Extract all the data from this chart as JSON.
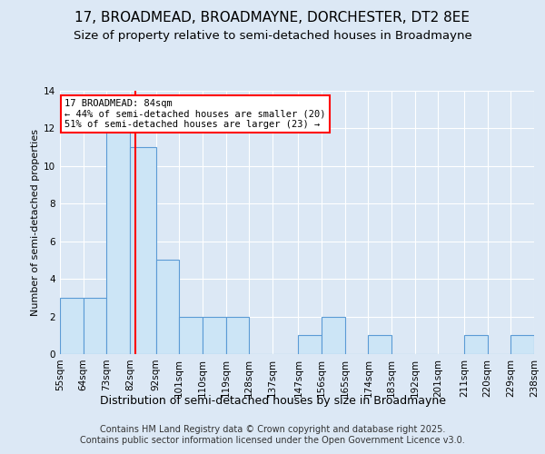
{
  "title": "17, BROADMEAD, BROADMAYNE, DORCHESTER, DT2 8EE",
  "subtitle": "Size of property relative to semi-detached houses in Broadmayne",
  "xlabel": "Distribution of semi-detached houses by size in Broadmayne",
  "ylabel": "Number of semi-detached properties",
  "bins": [
    55,
    64,
    73,
    82,
    92,
    101,
    110,
    119,
    128,
    137,
    147,
    156,
    165,
    174,
    183,
    192,
    201,
    211,
    220,
    229,
    238
  ],
  "bin_labels": [
    "55sqm",
    "64sqm",
    "73sqm",
    "82sqm",
    "92sqm",
    "101sqm",
    "110sqm",
    "119sqm",
    "128sqm",
    "137sqm",
    "147sqm",
    "156sqm",
    "165sqm",
    "174sqm",
    "183sqm",
    "192sqm",
    "201sqm",
    "211sqm",
    "220sqm",
    "229sqm",
    "238sqm"
  ],
  "counts": [
    3,
    3,
    12,
    11,
    5,
    2,
    2,
    2,
    0,
    0,
    1,
    2,
    0,
    1,
    0,
    0,
    0,
    1,
    0,
    1
  ],
  "bar_color": "#cce5f6",
  "bar_edge_color": "#5b9bd5",
  "vline_x": 84,
  "vline_color": "red",
  "annotation_text": "17 BROADMEAD: 84sqm\n← 44% of semi-detached houses are smaller (20)\n51% of semi-detached houses are larger (23) →",
  "annotation_box_color": "white",
  "annotation_box_edge_color": "red",
  "ylim": [
    0,
    14
  ],
  "yticks": [
    0,
    2,
    4,
    6,
    8,
    10,
    12,
    14
  ],
  "background_color": "#dce8f5",
  "plot_bg_color": "#dce8f5",
  "footer": "Contains HM Land Registry data © Crown copyright and database right 2025.\nContains public sector information licensed under the Open Government Licence v3.0.",
  "title_fontsize": 11,
  "subtitle_fontsize": 9.5,
  "xlabel_fontsize": 9,
  "ylabel_fontsize": 8,
  "tick_fontsize": 7.5,
  "footer_fontsize": 7
}
